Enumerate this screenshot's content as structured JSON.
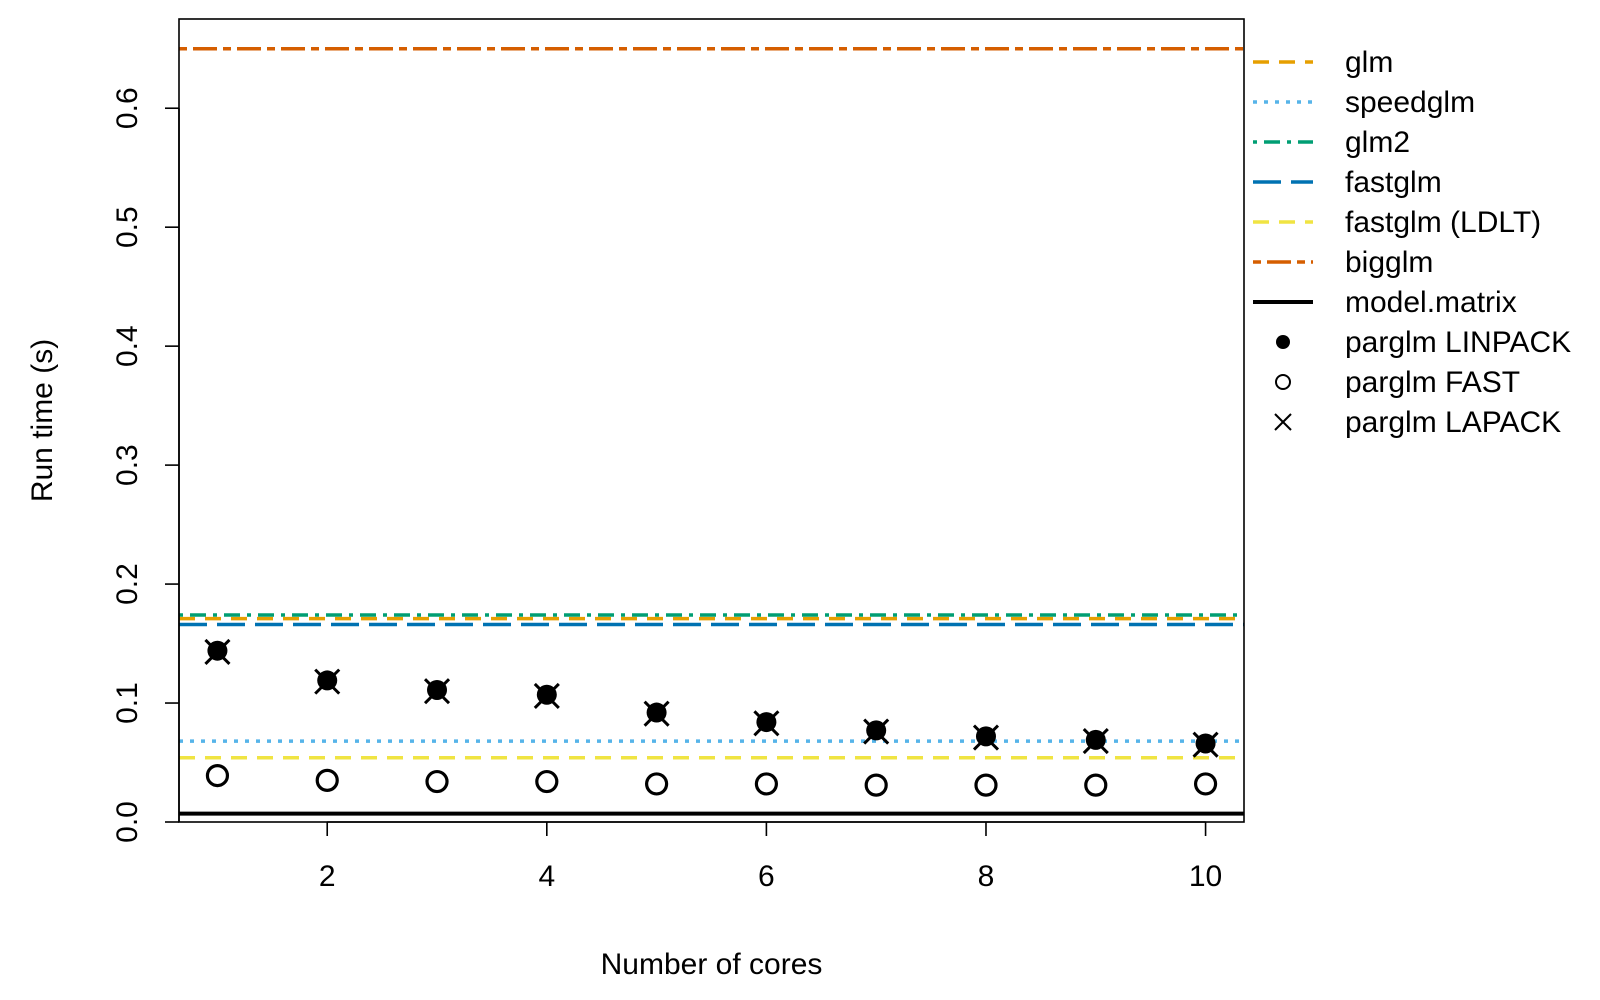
{
  "chart_data": {
    "type": "scatter",
    "title": "",
    "xlabel": "Number of cores",
    "ylabel": "Run time (s)",
    "xlim": [
      0.65,
      10.35
    ],
    "ylim": [
      0,
      0.675
    ],
    "x_ticks": [
      2,
      4,
      6,
      8,
      10
    ],
    "x_tick_labels": [
      "2",
      "4",
      "6",
      "8",
      "10"
    ],
    "y_ticks": [
      0.0,
      0.1,
      0.2,
      0.3,
      0.4,
      0.5,
      0.6
    ],
    "y_tick_labels": [
      "0.0",
      "0.1",
      "0.2",
      "0.3",
      "0.4",
      "0.5",
      "0.6"
    ],
    "grid": false,
    "legend_position": "right",
    "reference_lines": [
      {
        "name": "glm",
        "value": 0.171,
        "color": "#E69F00",
        "style": "dashed"
      },
      {
        "name": "speedglm",
        "value": 0.068,
        "color": "#56B4E9",
        "style": "dotted"
      },
      {
        "name": "glm2",
        "value": 0.174,
        "color": "#009E73",
        "style": "dotdash"
      },
      {
        "name": "fastglm",
        "value": 0.166,
        "color": "#0072B2",
        "style": "longdash"
      },
      {
        "name": "fastglm (LDLT)",
        "value": 0.054,
        "color": "#F0E442",
        "style": "dashed"
      },
      {
        "name": "bigglm",
        "value": 0.65,
        "color": "#D55E00",
        "style": "twodash"
      },
      {
        "name": "model.matrix",
        "value": 0.007,
        "color": "#000000",
        "style": "solid"
      }
    ],
    "x": [
      1,
      2,
      3,
      4,
      5,
      6,
      7,
      8,
      9,
      10
    ],
    "series": [
      {
        "name": "parglm LINPACK",
        "marker": "filled-circle",
        "values": [
          0.144,
          0.119,
          0.111,
          0.107,
          0.092,
          0.084,
          0.077,
          0.072,
          0.069,
          0.066
        ]
      },
      {
        "name": "parglm FAST",
        "marker": "open-circle",
        "values": [
          0.039,
          0.035,
          0.034,
          0.034,
          0.032,
          0.032,
          0.031,
          0.031,
          0.031,
          0.032
        ]
      },
      {
        "name": "parglm LAPACK",
        "marker": "cross",
        "values": [
          0.143,
          0.118,
          0.11,
          0.106,
          0.091,
          0.083,
          0.076,
          0.071,
          0.068,
          0.065
        ]
      }
    ]
  }
}
